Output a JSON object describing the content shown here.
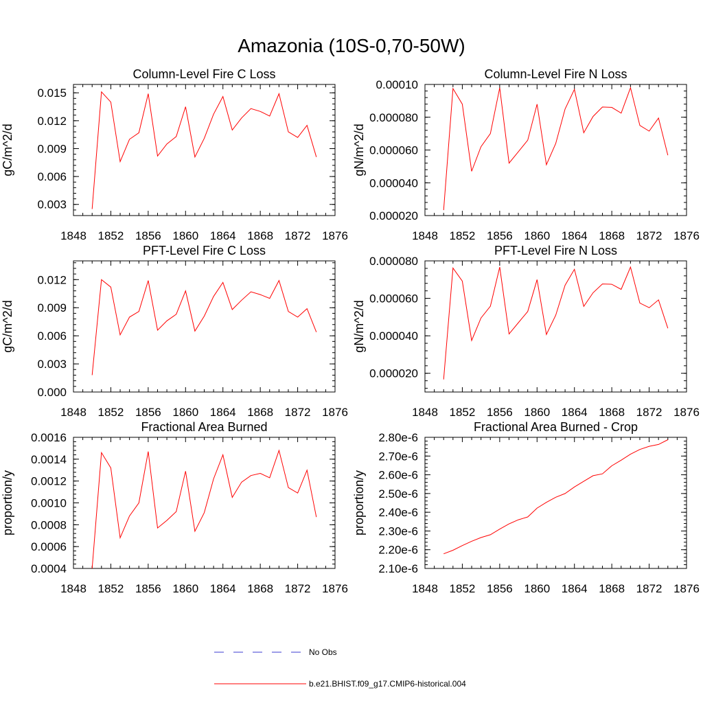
{
  "title": "Amazonia (10S-0,70-50W)",
  "legend": {
    "obs_label": "No Obs",
    "obs_color": "#3b3bd1",
    "model_label": "b.e21.BHIST.f09_g17.CMIP6-historical.004",
    "model_color": "#ff0000"
  },
  "chart_data": [
    {
      "type": "line",
      "title": "Column-Level Fire C Loss",
      "ylabel": "gC/m^2/d",
      "xlim": [
        1848,
        1876
      ],
      "xticks": [
        "1848",
        "1852",
        "1856",
        "1860",
        "1864",
        "1868",
        "1872",
        "1876"
      ],
      "ylim": [
        0.0018,
        0.0159
      ],
      "yticks": [
        0.003,
        0.006,
        0.009,
        0.012,
        0.015
      ],
      "ytick_labels": [
        "0.003",
        "0.006",
        "0.009",
        "0.012",
        "0.015"
      ],
      "series": [
        {
          "x": [
            1850,
            1851,
            1852,
            1853,
            1854,
            1855,
            1856,
            1857,
            1858,
            1859,
            1860,
            1861,
            1862,
            1863,
            1864,
            1865,
            1866,
            1867,
            1868,
            1869,
            1870,
            1871,
            1872,
            1873,
            1874
          ],
          "values": [
            0.0025,
            0.0151,
            0.014,
            0.0076,
            0.01,
            0.0107,
            0.0149,
            0.0082,
            0.0095,
            0.0103,
            0.0135,
            0.0081,
            0.0101,
            0.0127,
            0.0146,
            0.011,
            0.0123,
            0.0133,
            0.013,
            0.0125,
            0.0149,
            0.0108,
            0.0102,
            0.0115,
            0.0081
          ]
        }
      ]
    },
    {
      "type": "line",
      "title": "Column-Level Fire N Loss",
      "ylabel": "gN/m^2/d",
      "xlim": [
        1848,
        1876
      ],
      "xticks": [
        "1848",
        "1852",
        "1856",
        "1860",
        "1864",
        "1868",
        "1872",
        "1876"
      ],
      "ylim": [
        2e-05,
        0.0001
      ],
      "yticks": [
        2e-05,
        4e-05,
        6e-05,
        8e-05,
        0.0001
      ],
      "ytick_labels": [
        "0.000020",
        "0.000040",
        "0.000060",
        "0.000080",
        "0.00010"
      ],
      "series": [
        {
          "x": [
            1850,
            1851,
            1852,
            1853,
            1854,
            1855,
            1856,
            1857,
            1858,
            1859,
            1860,
            1861,
            1862,
            1863,
            1864,
            1865,
            1866,
            1867,
            1868,
            1869,
            1870,
            1871,
            1872,
            1873,
            1874
          ],
          "values": [
            2.33e-05,
            9.75e-05,
            8.8e-05,
            4.7e-05,
            6.2e-05,
            7e-05,
            9.8e-05,
            5.2e-05,
            5.9e-05,
            6.6e-05,
            8.8e-05,
            5.1e-05,
            6.4e-05,
            8.5e-05,
            9.7e-05,
            7.05e-05,
            8.05e-05,
            8.62e-05,
            8.6e-05,
            8.25e-05,
            9.8e-05,
            7.5e-05,
            7.15e-05,
            7.95e-05,
            5.68e-05
          ]
        }
      ]
    },
    {
      "type": "line",
      "title": "PFT-Level Fire C Loss",
      "ylabel": "gC/m^2/d",
      "xlim": [
        1848,
        1876
      ],
      "xticks": [
        "1848",
        "1852",
        "1856",
        "1860",
        "1864",
        "1868",
        "1872",
        "1876"
      ],
      "ylim": [
        0.0,
        0.014
      ],
      "yticks": [
        0.0,
        0.003,
        0.006,
        0.009,
        0.012
      ],
      "ytick_labels": [
        "0.000",
        "0.003",
        "0.006",
        "0.009",
        "0.012"
      ],
      "series": [
        {
          "x": [
            1850,
            1851,
            1852,
            1853,
            1854,
            1855,
            1856,
            1857,
            1858,
            1859,
            1860,
            1861,
            1862,
            1863,
            1864,
            1865,
            1866,
            1867,
            1868,
            1869,
            1870,
            1871,
            1872,
            1873,
            1874
          ],
          "values": [
            0.0018,
            0.012,
            0.0112,
            0.0061,
            0.008,
            0.0086,
            0.0119,
            0.0066,
            0.0076,
            0.0083,
            0.0108,
            0.0065,
            0.0081,
            0.0102,
            0.0117,
            0.0088,
            0.0098,
            0.0107,
            0.0104,
            0.01,
            0.0119,
            0.0086,
            0.008,
            0.0089,
            0.0064
          ]
        }
      ]
    },
    {
      "type": "line",
      "title": "PFT-Level Fire N Loss",
      "ylabel": "gN/m^2/d",
      "xlim": [
        1848,
        1876
      ],
      "xticks": [
        "1848",
        "1852",
        "1856",
        "1860",
        "1864",
        "1868",
        "1872",
        "1876"
      ],
      "ylim": [
        1e-05,
        8e-05
      ],
      "yticks": [
        2e-05,
        4e-05,
        6e-05,
        8e-05
      ],
      "ytick_labels": [
        "0.000020",
        "0.000040",
        "0.000060",
        "0.000080"
      ],
      "series": [
        {
          "x": [
            1850,
            1851,
            1852,
            1853,
            1854,
            1855,
            1856,
            1857,
            1858,
            1859,
            1860,
            1861,
            1862,
            1863,
            1864,
            1865,
            1866,
            1867,
            1868,
            1869,
            1870,
            1871,
            1872,
            1873,
            1874
          ],
          "values": [
            1.67e-05,
            7.62e-05,
            6.92e-05,
            3.75e-05,
            4.95e-05,
            5.58e-05,
            7.67e-05,
            4.1e-05,
            4.7e-05,
            5.3e-05,
            7e-05,
            4.07e-05,
            5.1e-05,
            6.7e-05,
            7.55e-05,
            5.57e-05,
            6.3e-05,
            6.77e-05,
            6.75e-05,
            6.48e-05,
            7.67e-05,
            5.75e-05,
            5.5e-05,
            5.92e-05,
            4.4e-05
          ]
        }
      ]
    },
    {
      "type": "line",
      "title": "Fractional Area Burned",
      "ylabel": "proportion/y",
      "xlim": [
        1848,
        1876
      ],
      "xticks": [
        "1848",
        "1852",
        "1856",
        "1860",
        "1864",
        "1868",
        "1872",
        "1876"
      ],
      "ylim": [
        0.0004,
        0.0016
      ],
      "yticks": [
        0.0004,
        0.0006,
        0.0008,
        0.001,
        0.0012,
        0.0014,
        0.0016
      ],
      "ytick_labels": [
        "0.0004",
        "0.0006",
        "0.0008",
        "0.0010",
        "0.0012",
        "0.0014",
        "0.0016"
      ],
      "series": [
        {
          "x": [
            1850,
            1851,
            1852,
            1853,
            1854,
            1855,
            1856,
            1857,
            1858,
            1859,
            1860,
            1861,
            1862,
            1863,
            1864,
            1865,
            1866,
            1867,
            1868,
            1869,
            1870,
            1871,
            1872,
            1873,
            1874
          ],
          "values": [
            0.0004,
            0.00146,
            0.00132,
            0.00068,
            0.00088,
            0.001,
            0.00147,
            0.00077,
            0.00084,
            0.00092,
            0.00129,
            0.00074,
            0.00091,
            0.00122,
            0.00144,
            0.00105,
            0.00119,
            0.00125,
            0.00127,
            0.00123,
            0.00148,
            0.00114,
            0.00109,
            0.0013,
            0.00087
          ]
        }
      ]
    },
    {
      "type": "line",
      "title": "Fractional Area Burned - Crop",
      "ylabel": "proportion/y",
      "xlim": [
        1848,
        1876
      ],
      "xticks": [
        "1848",
        "1852",
        "1856",
        "1860",
        "1864",
        "1868",
        "1872",
        "1876"
      ],
      "ylim": [
        2.1e-06,
        2.8e-06
      ],
      "yticks": [
        2.1e-06,
        2.2e-06,
        2.3e-06,
        2.4e-06,
        2.5e-06,
        2.6e-06,
        2.7e-06,
        2.8e-06
      ],
      "ytick_labels": [
        "2.10e-6",
        "2.20e-6",
        "2.30e-6",
        "2.40e-6",
        "2.50e-6",
        "2.60e-6",
        "2.70e-6",
        "2.80e-6"
      ],
      "series": [
        {
          "x": [
            1850,
            1851,
            1852,
            1853,
            1854,
            1855,
            1856,
            1857,
            1858,
            1859,
            1860,
            1861,
            1862,
            1863,
            1864,
            1865,
            1866,
            1867,
            1868,
            1869,
            1870,
            1871,
            1872,
            1873,
            1874
          ],
          "values": [
            2.178e-06,
            2.197e-06,
            2.222e-06,
            2.245e-06,
            2.265e-06,
            2.28e-06,
            2.31e-06,
            2.338e-06,
            2.36e-06,
            2.375e-06,
            2.422e-06,
            2.453e-06,
            2.48e-06,
            2.5e-06,
            2.535e-06,
            2.565e-06,
            2.595e-06,
            2.605e-06,
            2.648e-06,
            2.678e-06,
            2.71e-06,
            2.735e-06,
            2.752e-06,
            2.762e-06,
            2.787e-06
          ]
        }
      ]
    }
  ]
}
